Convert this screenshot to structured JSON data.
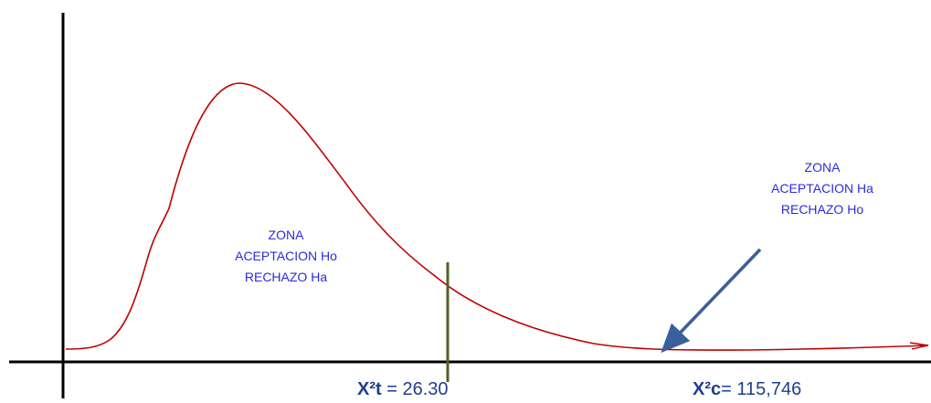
{
  "zones": {
    "left": {
      "line1": "ZONA",
      "line2": "ACEPTACION Ho",
      "line3": "RECHAZO Ha"
    },
    "right": {
      "line1": "ZONA",
      "line2": "ACEPTACION Ha",
      "line3": "RECHAZO Ho"
    }
  },
  "statistics": {
    "tabulated": {
      "symbol": "X²t",
      "separator": " = ",
      "value": "26.30"
    },
    "calculated": {
      "symbol": "X²c",
      "separator": "= ",
      "value": "115,746"
    }
  },
  "colors": {
    "curve": "#c00000",
    "critical_line": "#4f6228",
    "arrow": "#3a5f9a",
    "zone_text": "#2b2bdc",
    "stat_text": "#1f3f8c",
    "axes": "#000000"
  }
}
